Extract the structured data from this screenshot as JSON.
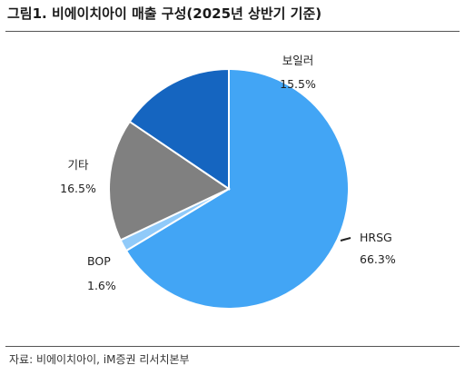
{
  "title": "그림1. 비에이치아이 매출 구성(2025년 상반기 기준)",
  "source": "자료: 비에이치아이, iM증권 리서치본부",
  "chart_data": {
    "type": "pie",
    "title": "그림1. 비에이치아이 매출 구성(2025년 상반기 기준)",
    "slices": [
      {
        "label": "HRSG",
        "value": 66.3,
        "value_label": "66.3%",
        "color": "#42A5F5"
      },
      {
        "label": "BOP",
        "value": 1.6,
        "value_label": "1.6%",
        "color": "#90CAF9"
      },
      {
        "label": "기타",
        "value": 16.5,
        "value_label": "16.5%",
        "color": "#808080"
      },
      {
        "label": "보일러",
        "value": 15.5,
        "value_label": "15.5%",
        "color": "#1565C0"
      }
    ],
    "start": "top, clockwise",
    "legend": "none (outside labels)"
  }
}
